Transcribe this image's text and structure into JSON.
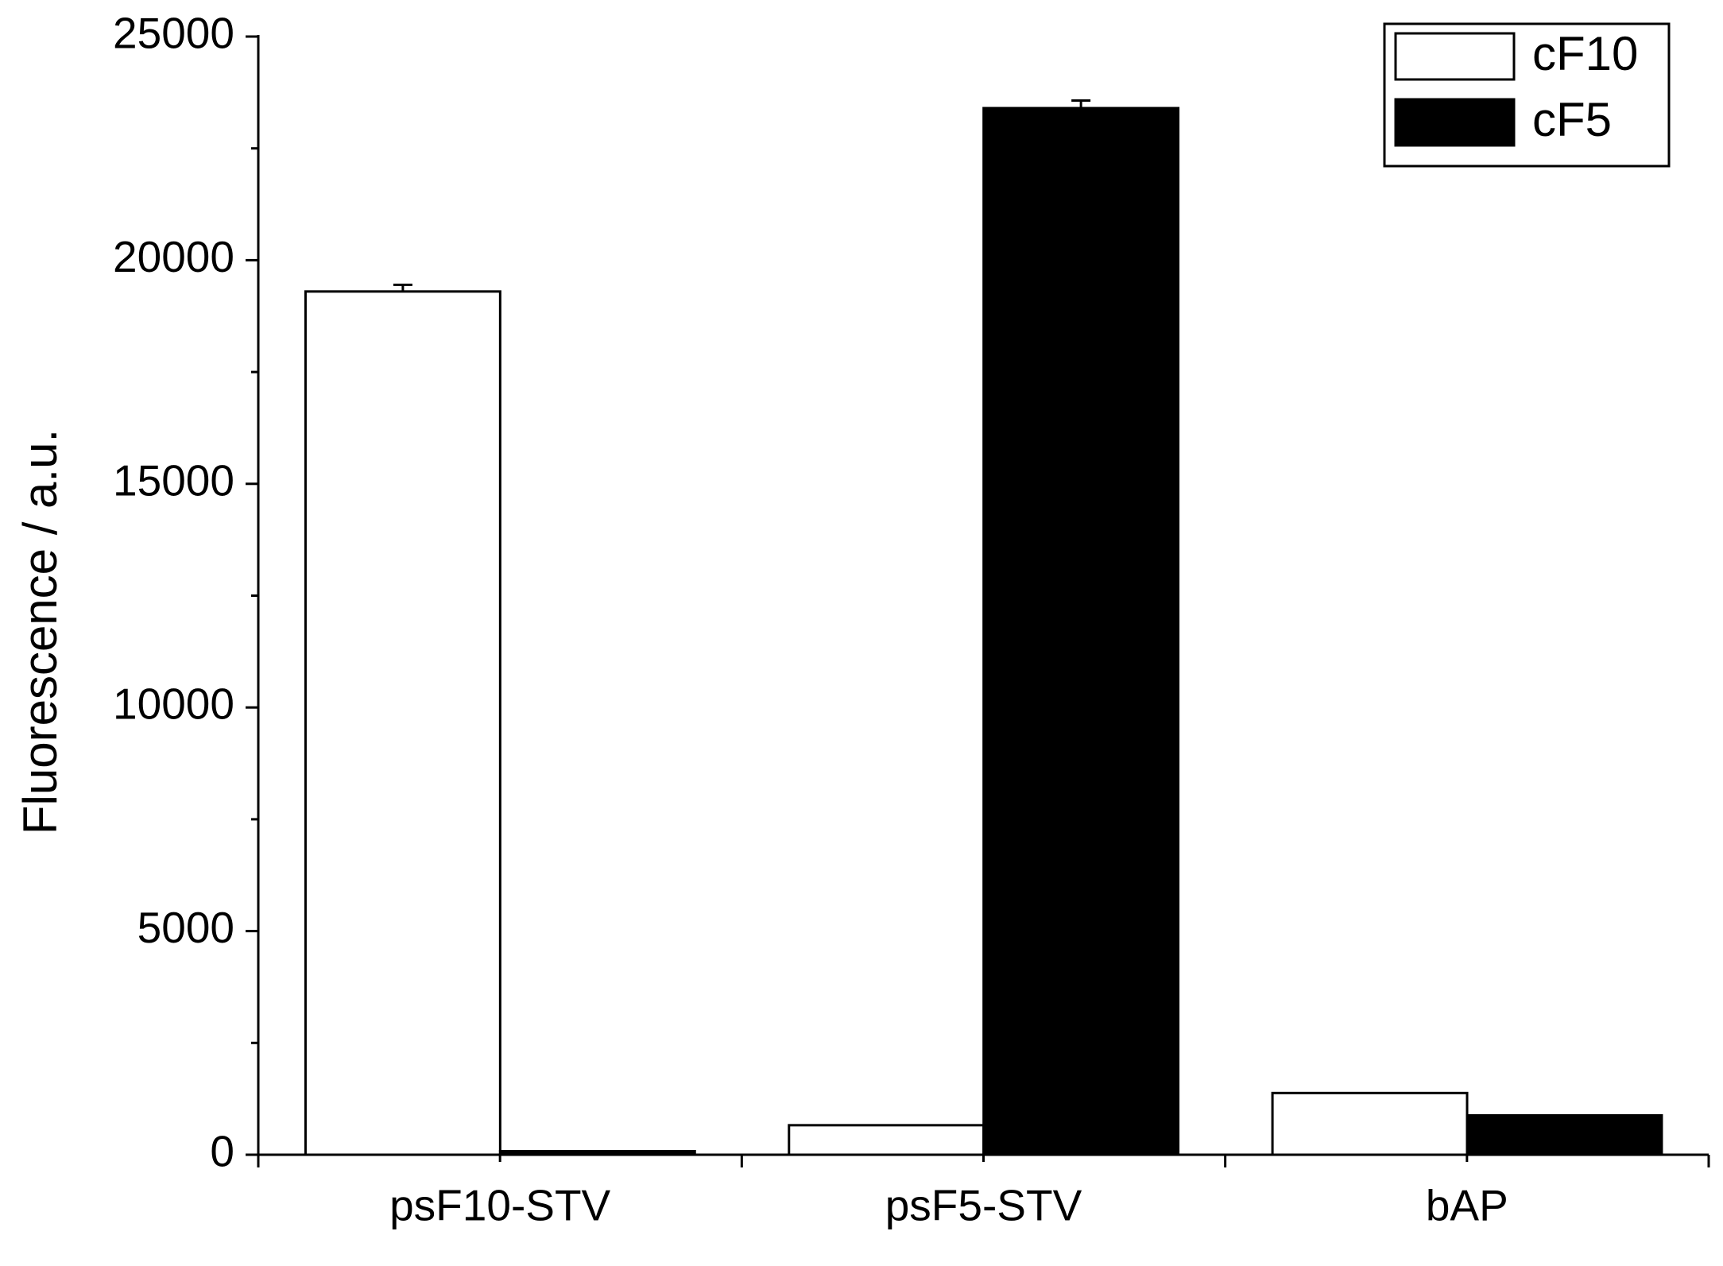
{
  "chart_data": {
    "type": "bar",
    "y_label": "Fluorescence / a.u.",
    "categories": [
      "psF10-STV",
      "psF5-STV",
      "bAP"
    ],
    "series": [
      {
        "name": "cF10",
        "color": "#ffffff",
        "values": [
          19300,
          660,
          1380
        ],
        "errors": [
          150,
          null,
          null
        ]
      },
      {
        "name": "cF5",
        "color": "#000000",
        "values": [
          80,
          23400,
          880
        ],
        "errors": [
          null,
          170,
          null
        ]
      }
    ],
    "ylim": [
      0,
      25000
    ],
    "yticks": [
      0,
      5000,
      10000,
      15000,
      20000,
      25000
    ],
    "legend": "upper right"
  }
}
